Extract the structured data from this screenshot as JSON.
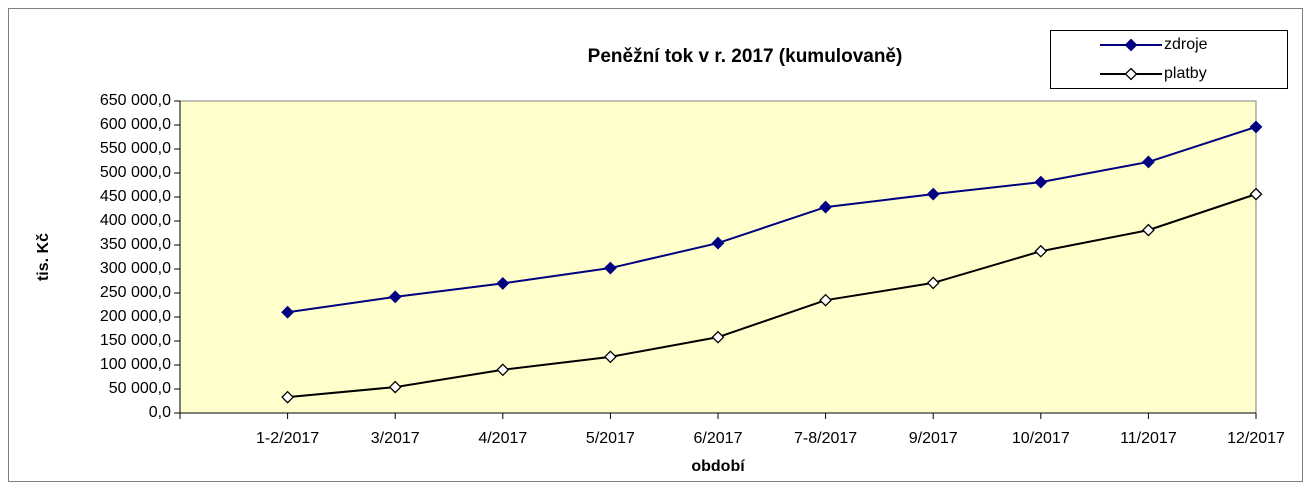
{
  "chart_data": {
    "type": "line",
    "title": "Peněžní tok  v r. 2017  (kumulovaně)",
    "x_label": "období",
    "y_label": "tis. Kč",
    "categories": [
      "1-2/2017",
      "3/2017",
      "4/2017",
      "5/2017",
      "6/2017",
      "7-8/2017",
      "9/2017",
      "10/2017",
      "11/2017",
      "12/2017"
    ],
    "series": [
      {
        "name": "zdroje",
        "color": "#000080",
        "marker_fill": "#000080",
        "values": [
          210000,
          242000,
          270000,
          302000,
          354000,
          429000,
          456000,
          481000,
          523000,
          596000
        ]
      },
      {
        "name": "platby",
        "color": "#000000",
        "marker_fill": "#ffffff",
        "values": [
          33000,
          54000,
          90000,
          117000,
          158000,
          235000,
          271000,
          337000,
          381000,
          456000
        ]
      }
    ],
    "ylim": [
      0,
      650000
    ],
    "yticks": [
      {
        "value": 0,
        "label": "0,0"
      },
      {
        "value": 50000,
        "label": "50 000,0"
      },
      {
        "value": 100000,
        "label": "100 000,0"
      },
      {
        "value": 150000,
        "label": "150 000,0"
      },
      {
        "value": 200000,
        "label": "200 000,0"
      },
      {
        "value": 250000,
        "label": "250 000,0"
      },
      {
        "value": 300000,
        "label": "300 000,0"
      },
      {
        "value": 350000,
        "label": "350 000,0"
      },
      {
        "value": 400000,
        "label": "400 000,0"
      },
      {
        "value": 450000,
        "label": "450 000,0"
      },
      {
        "value": 500000,
        "label": "500 000,0"
      },
      {
        "value": 550000,
        "label": "550 000,0"
      },
      {
        "value": 600000,
        "label": "600 000,0"
      },
      {
        "value": 650000,
        "label": "650 000,0"
      }
    ],
    "plot_background": "#ffffcc",
    "legend": "upper right"
  }
}
